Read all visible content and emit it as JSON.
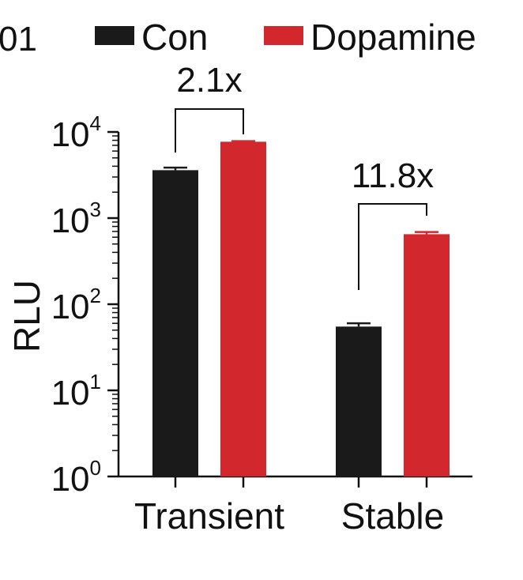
{
  "panel_fragment": "01",
  "chart_data": {
    "type": "bar",
    "ylabel": "RLU",
    "yscale": "log",
    "ylim": [
      1,
      10000
    ],
    "yticks": [
      {
        "base": "10",
        "exp": "0",
        "value": 1
      },
      {
        "base": "10",
        "exp": "1",
        "value": 10
      },
      {
        "base": "10",
        "exp": "2",
        "value": 100
      },
      {
        "base": "10",
        "exp": "3",
        "value": 1000
      },
      {
        "base": "10",
        "exp": "4",
        "value": 10000
      }
    ],
    "categories": [
      "Transient",
      "Stable"
    ],
    "series": [
      {
        "name": "Con",
        "color": "#1a1a1a",
        "values": [
          3600,
          55
        ],
        "errors": [
          250,
          5
        ]
      },
      {
        "name": "Dopamine",
        "color": "#d2282d",
        "values": [
          7700,
          650
        ],
        "errors": [
          120,
          40
        ]
      }
    ],
    "annotations": [
      "2.1x",
      "11.8x"
    ],
    "legend_position": "top"
  }
}
